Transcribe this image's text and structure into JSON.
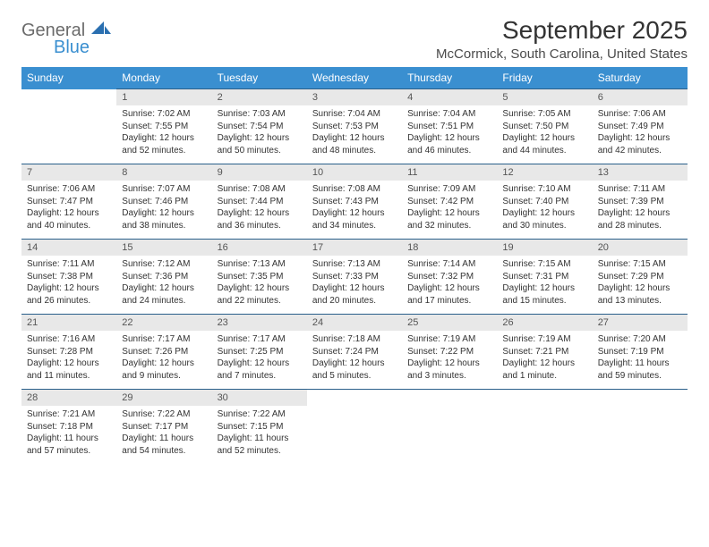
{
  "brand": {
    "text1": "General",
    "text2": "Blue"
  },
  "title": "September 2025",
  "location": "McCormick, South Carolina, United States",
  "colors": {
    "header_bg": "#3a8fd0",
    "header_text": "#ffffff",
    "daynum_bg": "#e8e8e8",
    "daynum_text": "#555555",
    "border": "#2a5f8a",
    "body_text": "#333333"
  },
  "weekdays": [
    "Sunday",
    "Monday",
    "Tuesday",
    "Wednesday",
    "Thursday",
    "Friday",
    "Saturday"
  ],
  "weeks": [
    {
      "nums": [
        "",
        "1",
        "2",
        "3",
        "4",
        "5",
        "6"
      ],
      "cells": [
        {
          "sunrise": "",
          "sunset": "",
          "daylight": ""
        },
        {
          "sunrise": "Sunrise: 7:02 AM",
          "sunset": "Sunset: 7:55 PM",
          "daylight": "Daylight: 12 hours and 52 minutes."
        },
        {
          "sunrise": "Sunrise: 7:03 AM",
          "sunset": "Sunset: 7:54 PM",
          "daylight": "Daylight: 12 hours and 50 minutes."
        },
        {
          "sunrise": "Sunrise: 7:04 AM",
          "sunset": "Sunset: 7:53 PM",
          "daylight": "Daylight: 12 hours and 48 minutes."
        },
        {
          "sunrise": "Sunrise: 7:04 AM",
          "sunset": "Sunset: 7:51 PM",
          "daylight": "Daylight: 12 hours and 46 minutes."
        },
        {
          "sunrise": "Sunrise: 7:05 AM",
          "sunset": "Sunset: 7:50 PM",
          "daylight": "Daylight: 12 hours and 44 minutes."
        },
        {
          "sunrise": "Sunrise: 7:06 AM",
          "sunset": "Sunset: 7:49 PM",
          "daylight": "Daylight: 12 hours and 42 minutes."
        }
      ]
    },
    {
      "nums": [
        "7",
        "8",
        "9",
        "10",
        "11",
        "12",
        "13"
      ],
      "cells": [
        {
          "sunrise": "Sunrise: 7:06 AM",
          "sunset": "Sunset: 7:47 PM",
          "daylight": "Daylight: 12 hours and 40 minutes."
        },
        {
          "sunrise": "Sunrise: 7:07 AM",
          "sunset": "Sunset: 7:46 PM",
          "daylight": "Daylight: 12 hours and 38 minutes."
        },
        {
          "sunrise": "Sunrise: 7:08 AM",
          "sunset": "Sunset: 7:44 PM",
          "daylight": "Daylight: 12 hours and 36 minutes."
        },
        {
          "sunrise": "Sunrise: 7:08 AM",
          "sunset": "Sunset: 7:43 PM",
          "daylight": "Daylight: 12 hours and 34 minutes."
        },
        {
          "sunrise": "Sunrise: 7:09 AM",
          "sunset": "Sunset: 7:42 PM",
          "daylight": "Daylight: 12 hours and 32 minutes."
        },
        {
          "sunrise": "Sunrise: 7:10 AM",
          "sunset": "Sunset: 7:40 PM",
          "daylight": "Daylight: 12 hours and 30 minutes."
        },
        {
          "sunrise": "Sunrise: 7:11 AM",
          "sunset": "Sunset: 7:39 PM",
          "daylight": "Daylight: 12 hours and 28 minutes."
        }
      ]
    },
    {
      "nums": [
        "14",
        "15",
        "16",
        "17",
        "18",
        "19",
        "20"
      ],
      "cells": [
        {
          "sunrise": "Sunrise: 7:11 AM",
          "sunset": "Sunset: 7:38 PM",
          "daylight": "Daylight: 12 hours and 26 minutes."
        },
        {
          "sunrise": "Sunrise: 7:12 AM",
          "sunset": "Sunset: 7:36 PM",
          "daylight": "Daylight: 12 hours and 24 minutes."
        },
        {
          "sunrise": "Sunrise: 7:13 AM",
          "sunset": "Sunset: 7:35 PM",
          "daylight": "Daylight: 12 hours and 22 minutes."
        },
        {
          "sunrise": "Sunrise: 7:13 AM",
          "sunset": "Sunset: 7:33 PM",
          "daylight": "Daylight: 12 hours and 20 minutes."
        },
        {
          "sunrise": "Sunrise: 7:14 AM",
          "sunset": "Sunset: 7:32 PM",
          "daylight": "Daylight: 12 hours and 17 minutes."
        },
        {
          "sunrise": "Sunrise: 7:15 AM",
          "sunset": "Sunset: 7:31 PM",
          "daylight": "Daylight: 12 hours and 15 minutes."
        },
        {
          "sunrise": "Sunrise: 7:15 AM",
          "sunset": "Sunset: 7:29 PM",
          "daylight": "Daylight: 12 hours and 13 minutes."
        }
      ]
    },
    {
      "nums": [
        "21",
        "22",
        "23",
        "24",
        "25",
        "26",
        "27"
      ],
      "cells": [
        {
          "sunrise": "Sunrise: 7:16 AM",
          "sunset": "Sunset: 7:28 PM",
          "daylight": "Daylight: 12 hours and 11 minutes."
        },
        {
          "sunrise": "Sunrise: 7:17 AM",
          "sunset": "Sunset: 7:26 PM",
          "daylight": "Daylight: 12 hours and 9 minutes."
        },
        {
          "sunrise": "Sunrise: 7:17 AM",
          "sunset": "Sunset: 7:25 PM",
          "daylight": "Daylight: 12 hours and 7 minutes."
        },
        {
          "sunrise": "Sunrise: 7:18 AM",
          "sunset": "Sunset: 7:24 PM",
          "daylight": "Daylight: 12 hours and 5 minutes."
        },
        {
          "sunrise": "Sunrise: 7:19 AM",
          "sunset": "Sunset: 7:22 PM",
          "daylight": "Daylight: 12 hours and 3 minutes."
        },
        {
          "sunrise": "Sunrise: 7:19 AM",
          "sunset": "Sunset: 7:21 PM",
          "daylight": "Daylight: 12 hours and 1 minute."
        },
        {
          "sunrise": "Sunrise: 7:20 AM",
          "sunset": "Sunset: 7:19 PM",
          "daylight": "Daylight: 11 hours and 59 minutes."
        }
      ]
    },
    {
      "nums": [
        "28",
        "29",
        "30",
        "",
        "",
        "",
        ""
      ],
      "cells": [
        {
          "sunrise": "Sunrise: 7:21 AM",
          "sunset": "Sunset: 7:18 PM",
          "daylight": "Daylight: 11 hours and 57 minutes."
        },
        {
          "sunrise": "Sunrise: 7:22 AM",
          "sunset": "Sunset: 7:17 PM",
          "daylight": "Daylight: 11 hours and 54 minutes."
        },
        {
          "sunrise": "Sunrise: 7:22 AM",
          "sunset": "Sunset: 7:15 PM",
          "daylight": "Daylight: 11 hours and 52 minutes."
        },
        {
          "sunrise": "",
          "sunset": "",
          "daylight": ""
        },
        {
          "sunrise": "",
          "sunset": "",
          "daylight": ""
        },
        {
          "sunrise": "",
          "sunset": "",
          "daylight": ""
        },
        {
          "sunrise": "",
          "sunset": "",
          "daylight": ""
        }
      ]
    }
  ]
}
